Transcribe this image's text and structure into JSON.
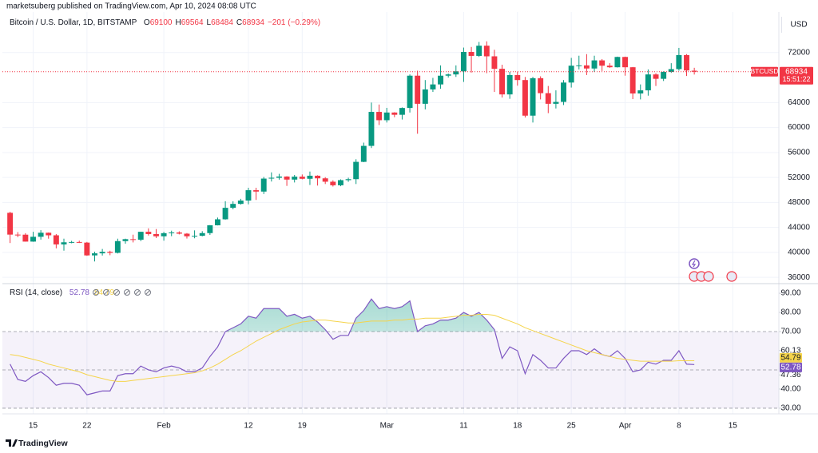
{
  "header": "marketsuberg published on TradingView.com, Apr 10, 2024 08:08 UTC",
  "footer": "TradingView",
  "chart_data": [
    {
      "type": "candlestick",
      "title": "Bitcoin / U.S. Dollar, 1D, BITSTAMP",
      "ohlc_labels": [
        "O",
        "H",
        "L",
        "C"
      ],
      "change": "−201 (−0.29%)",
      "axis_unit": "USD",
      "last_price_label": "BTCUSD",
      "countdown": "15:51:22",
      "up_color": "#089981",
      "down_color": "#f23645",
      "grid": true,
      "x": [
        "2024-01-12",
        "2024-01-13",
        "2024-01-14",
        "2024-01-15",
        "2024-01-16",
        "2024-01-17",
        "2024-01-18",
        "2024-01-19",
        "2024-01-20",
        "2024-01-21",
        "2024-01-22",
        "2024-01-23",
        "2024-01-24",
        "2024-01-25",
        "2024-01-26",
        "2024-01-27",
        "2024-01-28",
        "2024-01-29",
        "2024-01-30",
        "2024-01-31",
        "2024-02-01",
        "2024-02-02",
        "2024-02-03",
        "2024-02-04",
        "2024-02-05",
        "2024-02-06",
        "2024-02-07",
        "2024-02-08",
        "2024-02-09",
        "2024-02-10",
        "2024-02-11",
        "2024-02-12",
        "2024-02-13",
        "2024-02-14",
        "2024-02-15",
        "2024-02-16",
        "2024-02-17",
        "2024-02-18",
        "2024-02-19",
        "2024-02-20",
        "2024-02-21",
        "2024-02-22",
        "2024-02-23",
        "2024-02-24",
        "2024-02-25",
        "2024-02-26",
        "2024-02-27",
        "2024-02-28",
        "2024-02-29",
        "2024-03-01",
        "2024-03-02",
        "2024-03-03",
        "2024-03-04",
        "2024-03-05",
        "2024-03-06",
        "2024-03-07",
        "2024-03-08",
        "2024-03-09",
        "2024-03-10",
        "2024-03-11",
        "2024-03-12",
        "2024-03-13",
        "2024-03-14",
        "2024-03-15",
        "2024-03-16",
        "2024-03-17",
        "2024-03-18",
        "2024-03-19",
        "2024-03-20",
        "2024-03-21",
        "2024-03-22",
        "2024-03-23",
        "2024-03-24",
        "2024-03-25",
        "2024-03-26",
        "2024-03-27",
        "2024-03-28",
        "2024-03-29",
        "2024-03-30",
        "2024-03-31",
        "2024-04-01",
        "2024-04-02",
        "2024-04-03",
        "2024-04-04",
        "2024-04-05",
        "2024-04-06",
        "2024-04-07",
        "2024-04-08",
        "2024-04-09",
        "2024-04-10"
      ],
      "open": [
        46340,
        42850,
        42840,
        41730,
        42500,
        43150,
        42740,
        41280,
        41620,
        41670,
        41570,
        39520,
        39850,
        40090,
        39930,
        41810,
        42120,
        42030,
        43300,
        42940,
        42580,
        43080,
        43190,
        43000,
        42580,
        42660,
        43090,
        44340,
        45300,
        47140,
        47770,
        48300,
        49960,
        49740,
        51820,
        51950,
        52150,
        51660,
        52130,
        51790,
        52280,
        51860,
        51320,
        50750,
        51570,
        51730,
        54500,
        57060,
        62500,
        61170,
        62400,
        62040,
        63130,
        68300,
        63800,
        66100,
        66900,
        68300,
        68500,
        69000,
        72100,
        71470,
        73100,
        71400,
        69400,
        65300,
        68400,
        67600,
        61900,
        67900,
        65500,
        63800,
        64100,
        67200,
        69900,
        69950,
        69450,
        70750,
        69900,
        69650,
        71300,
        69650,
        65450,
        65950,
        68500,
        67800,
        68900,
        69350,
        71600,
        69100
      ],
      "high": [
        46500,
        43250,
        43080,
        43300,
        43560,
        43190,
        42930,
        42200,
        41850,
        41880,
        41680,
        40120,
        40550,
        40270,
        42200,
        42200,
        42840,
        43310,
        43850,
        43740,
        43280,
        43480,
        43380,
        43100,
        43530,
        43400,
        44380,
        45580,
        48200,
        48180,
        48580,
        50350,
        50350,
        52080,
        52820,
        52580,
        52200,
        52400,
        52480,
        52950,
        52350,
        52050,
        51550,
        51700,
        51960,
        54920,
        57580,
        64000,
        63680,
        63150,
        62450,
        63220,
        68500,
        69100,
        67600,
        67950,
        69950,
        68650,
        69950,
        72800,
        72900,
        73700,
        73800,
        72450,
        70050,
        68900,
        68950,
        68100,
        68100,
        68200,
        66650,
        65950,
        67600,
        71150,
        71500,
        71750,
        71500,
        70950,
        70300,
        71350,
        71350,
        69700,
        66900,
        69300,
        68700,
        69000,
        70300,
        72750,
        71750,
        69564
      ],
      "low": [
        41500,
        42440,
        41720,
        41700,
        42050,
        42200,
        40650,
        40280,
        41460,
        41500,
        39450,
        38550,
        39500,
        39550,
        39830,
        41400,
        41600,
        41800,
        42700,
        42300,
        41880,
        42600,
        42880,
        42220,
        42260,
        42580,
        42800,
        44320,
        45250,
        46900,
        47650,
        47700,
        48400,
        49350,
        51350,
        51650,
        50650,
        51200,
        51700,
        50800,
        50700,
        50950,
        50550,
        50600,
        51300,
        50950,
        54450,
        56720,
        60400,
        60800,
        61650,
        61280,
        62400,
        59000,
        62900,
        65700,
        66200,
        68000,
        68100,
        67300,
        68800,
        71300,
        68700,
        65700,
        64800,
        64600,
        66700,
        61600,
        60800,
        64500,
        62300,
        63050,
        63600,
        66400,
        69300,
        68400,
        68900,
        69050,
        69550,
        69600,
        68300,
        64550,
        64500,
        65100,
        66650,
        67450,
        68750,
        69100,
        68250,
        68484
      ],
      "close": [
        42850,
        42840,
        41730,
        42500,
        43150,
        42740,
        41280,
        41620,
        41670,
        41570,
        39520,
        39850,
        40090,
        39930,
        41810,
        42120,
        42030,
        43300,
        42940,
        42580,
        43080,
        43190,
        43000,
        42580,
        42660,
        43090,
        44340,
        45300,
        47140,
        47770,
        48300,
        49960,
        49740,
        51820,
        51950,
        52150,
        51660,
        52130,
        51790,
        52280,
        51860,
        51320,
        50750,
        51570,
        51730,
        54500,
        57060,
        62500,
        61170,
        62400,
        62040,
        63130,
        68300,
        63800,
        66100,
        66900,
        68300,
        68500,
        69000,
        72100,
        71470,
        73100,
        71400,
        69400,
        65300,
        68400,
        67600,
        61900,
        67900,
        65500,
        63800,
        64100,
        67200,
        69900,
        69950,
        69450,
        70750,
        69900,
        69650,
        71300,
        69650,
        65450,
        65950,
        68500,
        67800,
        68900,
        69350,
        71600,
        69135,
        68934
      ],
      "xlim": [
        "2024-01-11",
        "2024-04-21"
      ],
      "xticks": [
        {
          "value": "2024-01-15",
          "label": "15"
        },
        {
          "value": "2024-01-22",
          "label": "22"
        },
        {
          "value": "2024-02-01",
          "label": "Feb"
        },
        {
          "value": "2024-02-12",
          "label": "12"
        },
        {
          "value": "2024-02-19",
          "label": "19"
        },
        {
          "value": "2024-03-01",
          "label": "Mar"
        },
        {
          "value": "2024-03-11",
          "label": "11"
        },
        {
          "value": "2024-03-18",
          "label": "18"
        },
        {
          "value": "2024-03-25",
          "label": "25"
        },
        {
          "value": "2024-04-01",
          "label": "Apr"
        },
        {
          "value": "2024-04-08",
          "label": "8"
        },
        {
          "value": "2024-04-15",
          "label": "15"
        }
      ],
      "ylim": [
        35000,
        78500
      ],
      "yticks": [
        36000,
        40000,
        44000,
        48000,
        52000,
        56000,
        60000,
        64000,
        72000
      ]
    },
    {
      "type": "line",
      "title": "RSI (14, close)",
      "series": [
        {
          "color": "#7e57c2",
          "values": [
            53,
            45,
            44,
            47,
            49,
            46,
            42,
            43,
            43,
            42,
            37,
            38,
            39,
            39,
            47,
            48,
            48,
            52,
            50,
            49,
            51,
            52,
            51,
            49,
            49,
            51,
            57,
            62,
            70,
            72,
            74,
            78,
            77,
            82,
            82,
            82,
            78,
            79,
            77,
            78,
            75,
            71,
            66,
            68,
            68,
            77,
            81,
            87,
            82,
            83,
            82,
            83,
            86,
            70,
            73,
            74,
            76,
            76,
            77,
            80,
            78,
            80,
            76,
            71,
            56,
            62,
            60,
            48,
            58,
            55,
            51,
            51,
            56,
            60,
            60,
            58,
            61,
            58,
            57,
            60,
            56,
            49,
            50,
            54,
            53,
            55,
            55,
            60,
            53,
            52.78
          ]
        },
        {
          "color": "#f5d44b",
          "values": [
            58,
            57.5,
            56.5,
            55.5,
            54.5,
            53,
            52,
            51,
            50,
            49,
            47.5,
            46.5,
            45.5,
            44.5,
            44,
            44,
            44.5,
            45,
            45.5,
            46,
            46.5,
            47,
            47.5,
            48,
            48.5,
            49.5,
            51,
            53,
            55.5,
            58,
            60,
            62.5,
            65,
            67,
            69,
            71,
            72.5,
            74,
            75,
            75.5,
            76,
            76,
            75.5,
            75,
            74.5,
            74.5,
            75,
            75.5,
            75.5,
            75.5,
            76,
            76,
            76.5,
            76.5,
            77,
            77,
            77,
            77.5,
            78,
            78.5,
            78.5,
            79,
            79,
            78.5,
            77,
            75.5,
            74,
            72,
            70.5,
            69,
            67.5,
            66,
            64.5,
            63,
            61.5,
            60,
            59,
            58,
            57,
            56,
            55.5,
            55,
            54.5,
            54.5,
            54.5,
            54.5,
            54.5,
            54.8,
            54.8,
            54.79
          ]
        }
      ],
      "bands": [
        70,
        50,
        30
      ],
      "band_color": "#7e57c2",
      "overbought_fill": "#089981",
      "ylim": [
        28.3,
        94.2
      ],
      "yticks": [
        {
          "value": 90,
          "label": "90.00"
        },
        {
          "value": 80,
          "label": "80.00"
        },
        {
          "value": 70,
          "label": "70.00"
        },
        60.13,
        47.36,
        {
          "value": 40,
          "label": "40.00"
        },
        {
          "value": 30,
          "label": "30.00"
        }
      ]
    }
  ]
}
